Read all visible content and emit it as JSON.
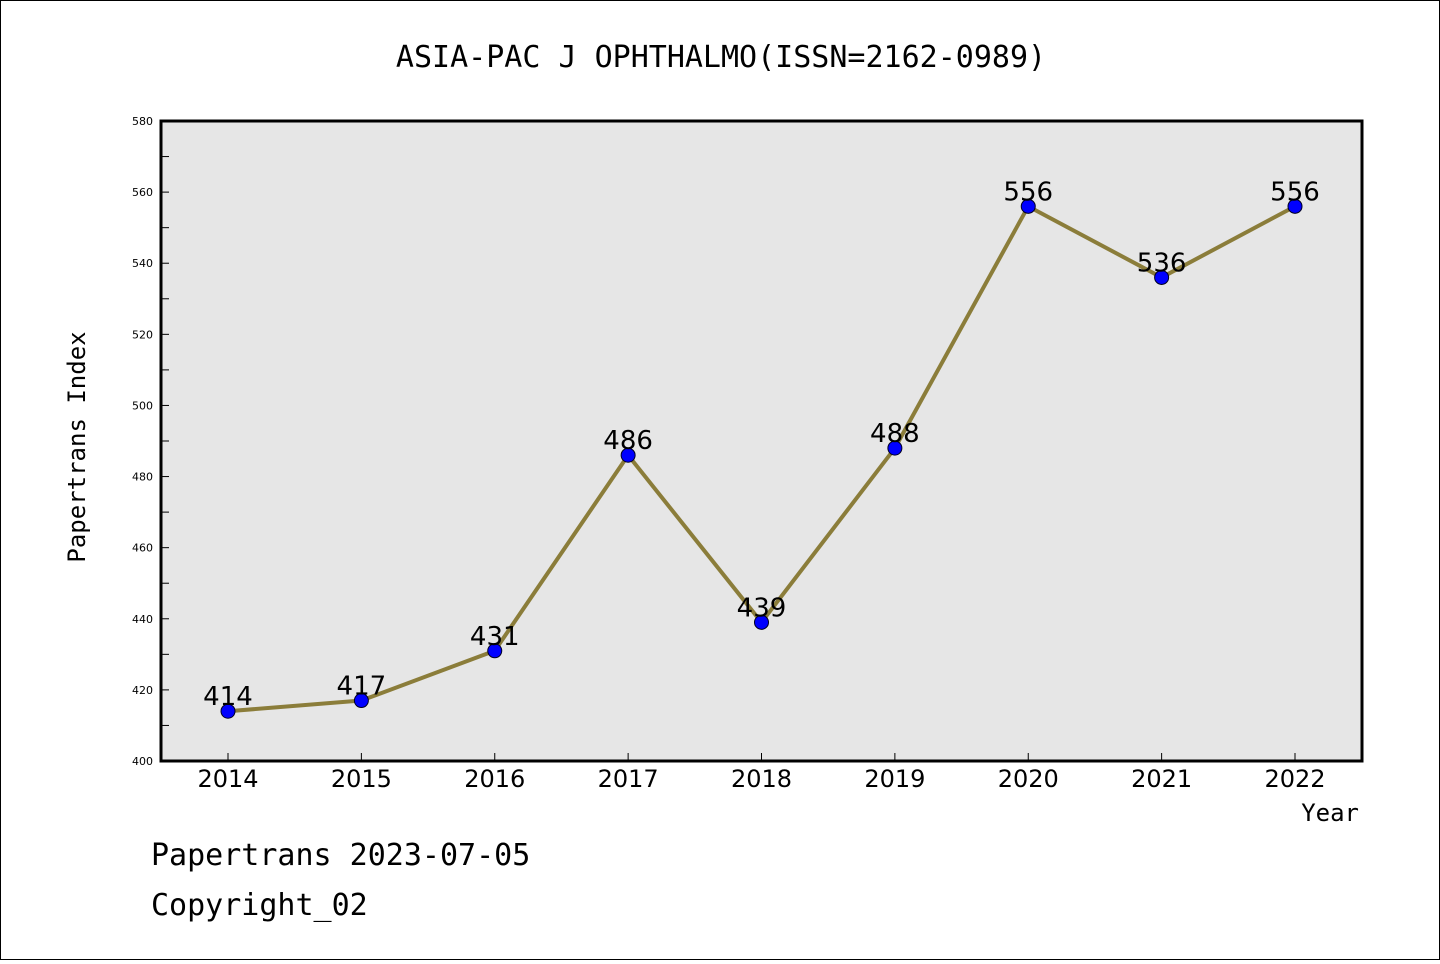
{
  "chart_data": {
    "type": "line",
    "title": "ASIA-PAC J OPHTHALMO(ISSN=2162-0989)",
    "xlabel": "Year",
    "ylabel": "Papertrans Index",
    "categories": [
      "2014",
      "2015",
      "2016",
      "2017",
      "2018",
      "2019",
      "2020",
      "2021",
      "2022"
    ],
    "series": [
      {
        "values": [
          414,
          417,
          431,
          486,
          439,
          488,
          556,
          536,
          556
        ]
      }
    ],
    "data_labels": [
      "414",
      "417",
      "431",
      "486",
      "439",
      "488",
      "556",
      "536",
      "556"
    ],
    "ylim": [
      400,
      580
    ],
    "yticks": [
      "400",
      "420",
      "440",
      "460",
      "480",
      "500",
      "520",
      "540",
      "560",
      "580"
    ],
    "grid": false,
    "legend": "none",
    "colors": {
      "line": "#8B7D3A",
      "marker": "#0000FF",
      "plot_background": "#E6E6E6"
    }
  },
  "footer": {
    "date_line": "Papertrans 2023-07-05",
    "copyright": "Copyright_02"
  }
}
